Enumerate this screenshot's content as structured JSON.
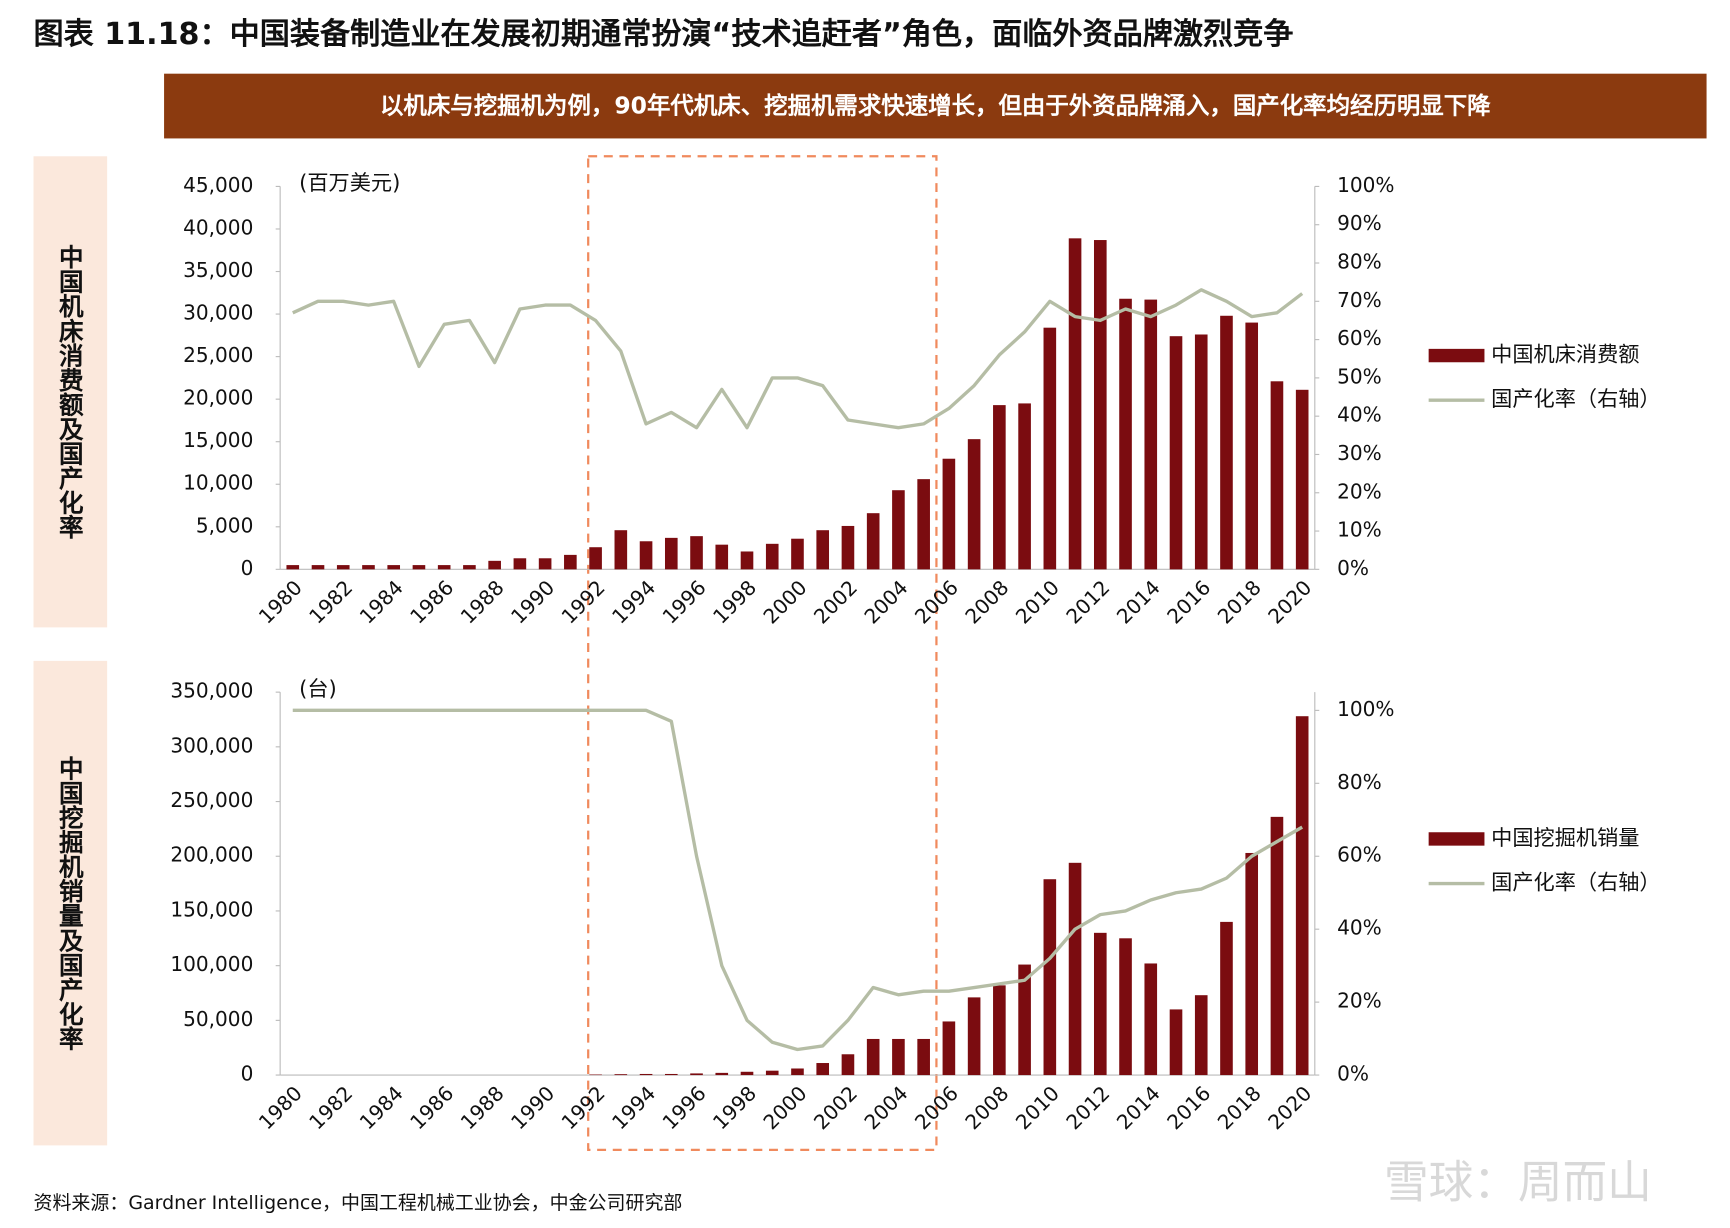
{
  "title": "图表 11.18：中国装备制造业在发展初期通常扮演“技术追赶者”角色，面临外资品牌激烈竞争",
  "banner": "以机床与挖掘机为例，90年代机床、挖掘机需求快速增长，但由于外资品牌涌入，国产化率均经历明显下降",
  "source": "资料来源：Gardner Intelligence，中国工程机械工业协会，中金公司研究部",
  "watermark": "雪球：周而山",
  "chart_data": [
    {
      "type": "bar",
      "side_label": "中国机床消费额及国产化率",
      "unit_label": "(百万美元)",
      "categories": [
        "1980",
        null,
        "1982",
        null,
        "1984",
        null,
        "1986",
        null,
        "1988",
        null,
        "1990",
        null,
        "1992",
        null,
        "1994",
        null,
        "1996",
        null,
        "1998",
        null,
        "2000",
        null,
        "2002",
        null,
        "2004",
        null,
        "2006",
        null,
        "2008",
        null,
        "2010",
        null,
        "2012",
        null,
        "2014",
        null,
        "2016",
        null,
        "2018",
        null,
        "2020"
      ],
      "series": [
        {
          "name": "中国机床消费额",
          "color": "#7b0c10",
          "values": [
            500,
            500,
            500,
            500,
            500,
            500,
            500,
            500,
            1000,
            1300,
            1300,
            1700,
            2600,
            4600,
            3300,
            3700,
            3900,
            2900,
            2100,
            3000,
            3600,
            4600,
            5100,
            6600,
            9300,
            10600,
            13000,
            15300,
            19300,
            19500,
            28400,
            38900,
            38700,
            31800,
            31700,
            27400,
            27600,
            29800,
            29000,
            22100,
            21100
          ]
        },
        {
          "name": "国产化率（右轴）",
          "color": "#b5bda5",
          "type": "line",
          "axis": "y2",
          "values": [
            67,
            70,
            70,
            69,
            70,
            53,
            64,
            65,
            54,
            68,
            69,
            69,
            65,
            57,
            38,
            41,
            37,
            47,
            37,
            50,
            50,
            48,
            39,
            38,
            37,
            38,
            42,
            48,
            56,
            62,
            70,
            66,
            65,
            68,
            66,
            69,
            73,
            70,
            66,
            67,
            72
          ]
        }
      ],
      "ylim": [
        0,
        45000
      ],
      "yticks": [
        0,
        {
          "value": 5000,
          "label": "5,000"
        },
        {
          "value": 10000,
          "label": "10,000"
        },
        {
          "value": 15000,
          "label": "15,000"
        },
        {
          "value": 20000,
          "label": "20,000"
        },
        {
          "value": 25000,
          "label": "25,000"
        },
        {
          "value": 30000,
          "label": "30,000"
        },
        {
          "value": 35000,
          "label": "35,000"
        },
        {
          "value": 40000,
          "label": "40,000"
        },
        {
          "value": 45000,
          "label": "45,000"
        }
      ],
      "y2lim": [
        0,
        100
      ],
      "y2ticks": [
        {
          "value": 0,
          "label": "0%"
        },
        {
          "value": 10,
          "label": "10%"
        },
        {
          "value": 20,
          "label": "20%"
        },
        {
          "value": 30,
          "label": "30%"
        },
        {
          "value": 40,
          "label": "40%"
        },
        {
          "value": 50,
          "label": "50%"
        },
        {
          "value": 60,
          "label": "60%"
        },
        {
          "value": 70,
          "label": "70%"
        },
        {
          "value": 80,
          "label": "80%"
        },
        {
          "value": 90,
          "label": "90%"
        },
        {
          "value": 100,
          "label": "100%"
        }
      ],
      "legend": "right"
    },
    {
      "type": "bar",
      "side_label": "中国挖掘机销量及国产化率",
      "unit_label": "(台)",
      "categories": [
        "1980",
        null,
        "1982",
        null,
        "1984",
        null,
        "1986",
        null,
        "1988",
        null,
        "1990",
        null,
        "1992",
        null,
        "1994",
        null,
        "1996",
        null,
        "1998",
        null,
        "2000",
        null,
        "2002",
        null,
        "2004",
        null,
        "2006",
        null,
        "2008",
        null,
        "2010",
        null,
        "2012",
        null,
        "2014",
        null,
        "2016",
        null,
        "2018",
        null,
        "2020"
      ],
      "series": [
        {
          "name": "中国挖掘机销量",
          "color": "#7b0c10",
          "values": [
            0,
            0,
            0,
            0,
            0,
            0,
            0,
            0,
            0,
            0,
            0,
            0,
            500,
            800,
            1000,
            1000,
            1500,
            2000,
            3000,
            4000,
            6000,
            11000,
            19000,
            33000,
            33000,
            33000,
            49000,
            71000,
            82000,
            101000,
            179000,
            194000,
            130000,
            125000,
            102000,
            60000,
            73000,
            140000,
            203000,
            236000,
            328000
          ]
        },
        {
          "name": "国产化率（右轴）",
          "color": "#b5bda5",
          "type": "line",
          "axis": "y2",
          "values": [
            100,
            100,
            100,
            100,
            100,
            100,
            100,
            100,
            100,
            100,
            100,
            100,
            100,
            100,
            100,
            97,
            60,
            30,
            15,
            9,
            7,
            8,
            15,
            24,
            22,
            23,
            23,
            24,
            25,
            26,
            32,
            40,
            44,
            45,
            48,
            50,
            51,
            54,
            60,
            64,
            68
          ]
        }
      ],
      "ylim": [
        0,
        350000
      ],
      "yticks": [
        0,
        {
          "value": 50000,
          "label": "50,000"
        },
        {
          "value": 100000,
          "label": "100,000"
        },
        {
          "value": 150000,
          "label": "150,000"
        },
        {
          "value": 200000,
          "label": "200,000"
        },
        {
          "value": 250000,
          "label": "250,000"
        },
        {
          "value": 300000,
          "label": "300,000"
        },
        {
          "value": 350000,
          "label": "350,000"
        }
      ],
      "y2lim": [
        0,
        105
      ],
      "y2ticks": [
        {
          "value": 0,
          "label": "0%"
        },
        {
          "value": 20,
          "label": "20%"
        },
        {
          "value": 40,
          "label": "40%"
        },
        {
          "value": 60,
          "label": "60%"
        },
        {
          "value": 80,
          "label": "80%"
        },
        {
          "value": 100,
          "label": "100%"
        }
      ],
      "legend": "right"
    }
  ]
}
